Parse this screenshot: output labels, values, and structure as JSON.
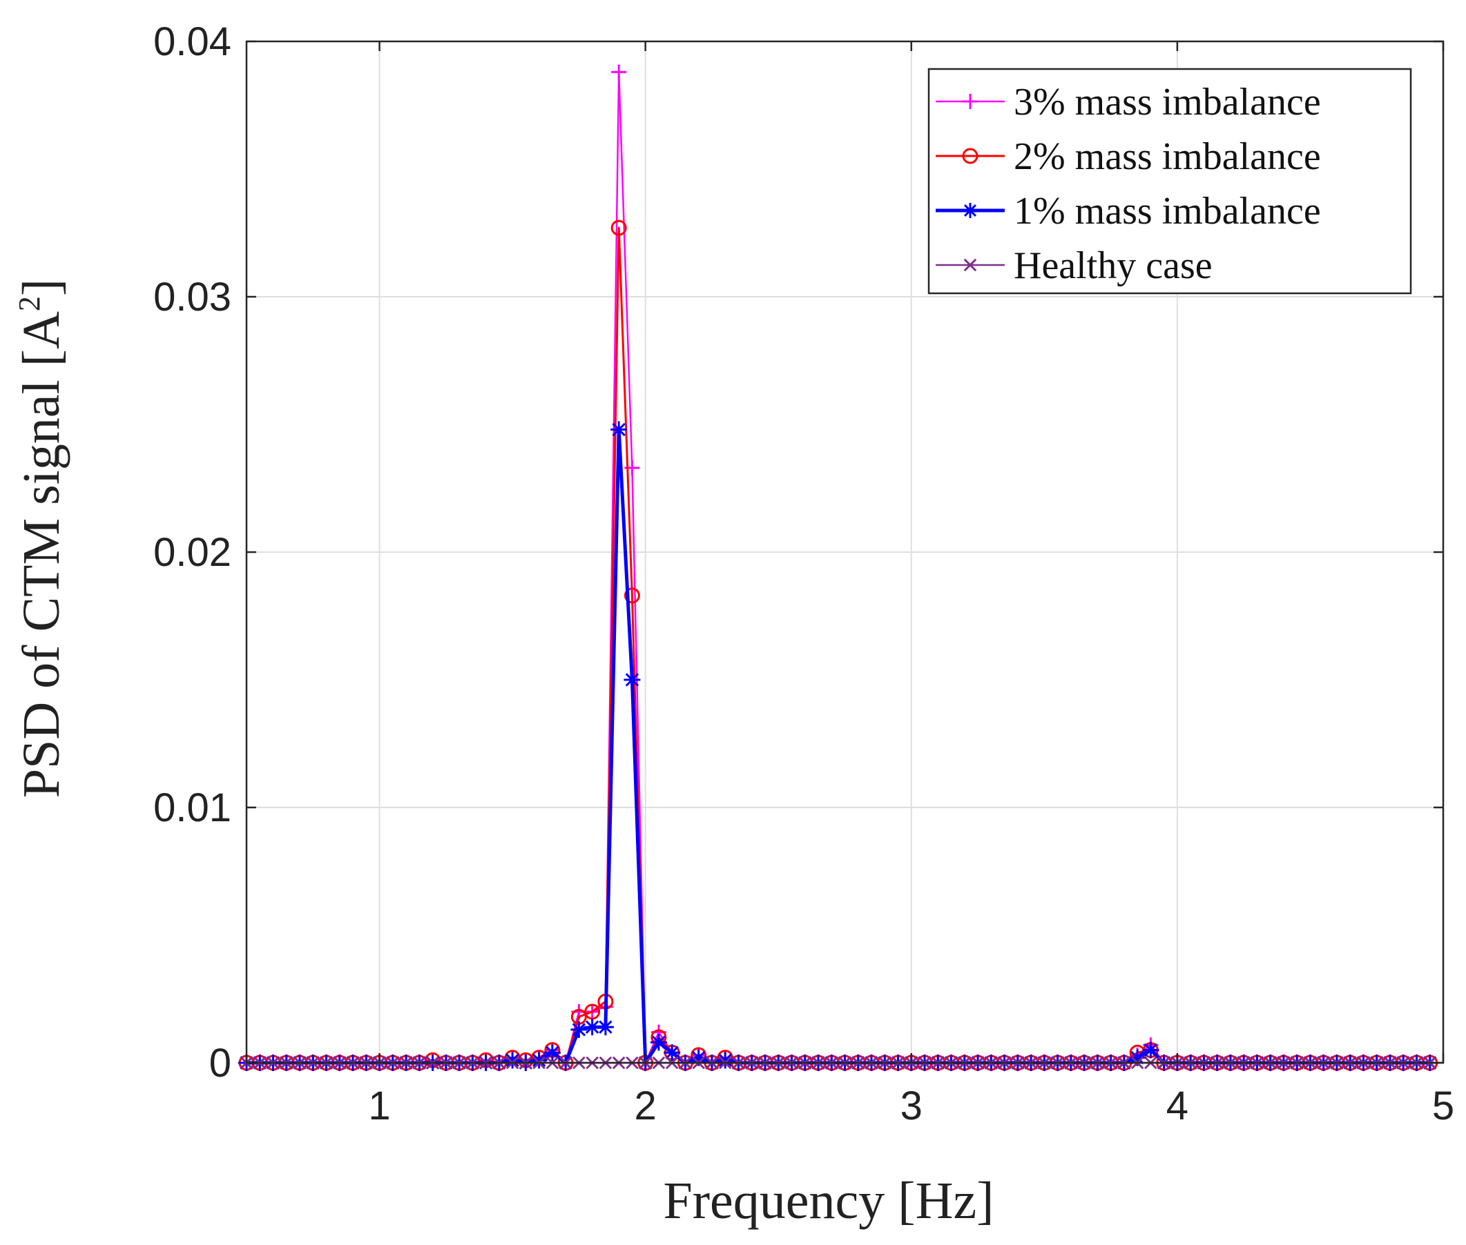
{
  "chart_data": {
    "type": "line",
    "title": "",
    "xlabel": "Frequency [Hz]",
    "ylabel_main": "PSD of CTM signal [A",
    "ylabel_sup": "2",
    "ylabel_close": "]",
    "xlim": [
      0.5,
      5.0
    ],
    "ylim": [
      0,
      0.04
    ],
    "xticks": [
      1,
      2,
      3,
      4,
      5
    ],
    "xtick_labels": [
      "1",
      "2",
      "3",
      "4",
      "5"
    ],
    "yticks": [
      0,
      0.01,
      0.02,
      0.03,
      0.04
    ],
    "ytick_labels": [
      "0",
      "0.01",
      "0.02",
      "0.03",
      "0.04"
    ],
    "grid": true,
    "legend_position": "top-right",
    "x": [
      0.5,
      0.55,
      0.6,
      0.65,
      0.7,
      0.75,
      0.8,
      0.85,
      0.9,
      0.95,
      1.0,
      1.05,
      1.1,
      1.15,
      1.2,
      1.25,
      1.3,
      1.35,
      1.4,
      1.45,
      1.5,
      1.55,
      1.6,
      1.65,
      1.7,
      1.75,
      1.8,
      1.85,
      1.9,
      1.95,
      2.0,
      2.05,
      2.1,
      2.15,
      2.2,
      2.25,
      2.3,
      2.35,
      2.4,
      2.45,
      2.5,
      2.55,
      2.6,
      2.65,
      2.7,
      2.75,
      2.8,
      2.85,
      2.9,
      2.95,
      3.0,
      3.05,
      3.1,
      3.15,
      3.2,
      3.25,
      3.3,
      3.35,
      3.4,
      3.45,
      3.5,
      3.55,
      3.6,
      3.65,
      3.7,
      3.75,
      3.8,
      3.85,
      3.9,
      3.95,
      4.0,
      4.05,
      4.1,
      4.15,
      4.2,
      4.25,
      4.3,
      4.35,
      4.4,
      4.45,
      4.5,
      4.55,
      4.6,
      4.65,
      4.7,
      4.75,
      4.8,
      4.85,
      4.9,
      4.95
    ],
    "series": [
      {
        "name": "3% mass imbalance",
        "color": "#ff00ff",
        "marker": "plus",
        "values": [
          0,
          0,
          0,
          0,
          0,
          0,
          0,
          0,
          0,
          0,
          0,
          0,
          0,
          0,
          0.0001,
          0,
          0,
          0,
          0.0001,
          0,
          0.0002,
          0.0001,
          0.0002,
          0.0005,
          0,
          0.002,
          0.002,
          0.0022,
          0.0388,
          0.0233,
          0,
          0.0012,
          0.0004,
          0,
          0.0003,
          0,
          0.0002,
          0,
          0,
          0,
          0,
          0,
          0,
          0,
          0,
          0,
          0,
          0,
          0,
          0,
          0,
          0,
          0,
          0,
          0,
          0,
          0,
          0,
          0,
          0,
          0,
          0,
          0,
          0,
          0,
          0,
          0,
          0.0003,
          0.0007,
          0,
          0,
          0,
          0,
          0,
          0,
          0,
          0,
          0,
          0,
          0,
          0,
          0,
          0,
          0,
          0,
          0,
          0,
          0,
          0,
          0
        ]
      },
      {
        "name": "2% mass imbalance",
        "color": "#ff0000",
        "marker": "circle",
        "values": [
          0,
          0,
          0,
          0,
          0,
          0,
          0,
          0,
          0,
          0,
          0,
          0,
          0,
          0,
          0.0001,
          0,
          0,
          0,
          0.0001,
          0,
          0.0002,
          0.0001,
          0.0002,
          0.0005,
          0,
          0.0018,
          0.002,
          0.0024,
          0.0327,
          0.0183,
          0,
          0.001,
          0.0004,
          0,
          0.0003,
          0,
          0.0002,
          0,
          0,
          0,
          0,
          0,
          0,
          0,
          0,
          0,
          0,
          0,
          0,
          0,
          0,
          0,
          0,
          0,
          0,
          0,
          0,
          0,
          0,
          0,
          0,
          0,
          0,
          0,
          0,
          0,
          0,
          0.0004,
          0.0005,
          0,
          0,
          0,
          0,
          0,
          0,
          0,
          0,
          0,
          0,
          0,
          0,
          0,
          0,
          0,
          0,
          0,
          0,
          0,
          0,
          0
        ]
      },
      {
        "name": "1% mass imbalance",
        "color": "#0000ff",
        "marker": "asterisk",
        "values": [
          0,
          0,
          0,
          0,
          0,
          0,
          0,
          0,
          0,
          0,
          0,
          0,
          0,
          0,
          0,
          0,
          0,
          0,
          0,
          0,
          0.0001,
          0,
          0.0001,
          0.0004,
          0,
          0.0013,
          0.0014,
          0.0014,
          0.0248,
          0.015,
          0,
          0.0008,
          0.0004,
          0,
          0.0002,
          0,
          0.0001,
          0,
          0,
          0,
          0,
          0,
          0,
          0,
          0,
          0,
          0,
          0,
          0,
          0,
          0,
          0,
          0,
          0,
          0,
          0,
          0,
          0,
          0,
          0,
          0,
          0,
          0,
          0,
          0,
          0,
          0,
          0.0002,
          0.0005,
          0,
          0,
          0,
          0,
          0,
          0,
          0,
          0,
          0,
          0,
          0,
          0,
          0,
          0,
          0,
          0,
          0,
          0,
          0,
          0,
          0
        ]
      },
      {
        "name": "Healthy case",
        "color": "#7e2f8e",
        "marker": "x",
        "values": [
          0,
          0,
          0,
          0,
          0,
          0,
          0,
          0,
          0,
          0,
          0,
          0,
          0,
          0,
          0,
          0,
          0,
          0,
          0,
          0,
          0,
          0,
          0,
          0,
          0,
          0,
          0,
          0,
          0,
          0,
          0,
          0,
          0,
          0,
          0,
          0,
          0,
          0,
          0,
          0,
          0,
          0,
          0,
          0,
          0,
          0,
          0,
          0,
          0,
          0,
          0,
          0,
          0,
          0,
          0,
          0,
          0,
          0,
          0,
          0,
          0,
          0,
          0,
          0,
          0,
          0,
          0,
          0,
          0,
          0,
          0,
          0,
          0,
          0,
          0,
          0,
          0,
          0,
          0,
          0,
          0,
          0,
          0,
          0,
          0,
          0,
          0,
          0,
          0,
          0
        ]
      }
    ]
  }
}
